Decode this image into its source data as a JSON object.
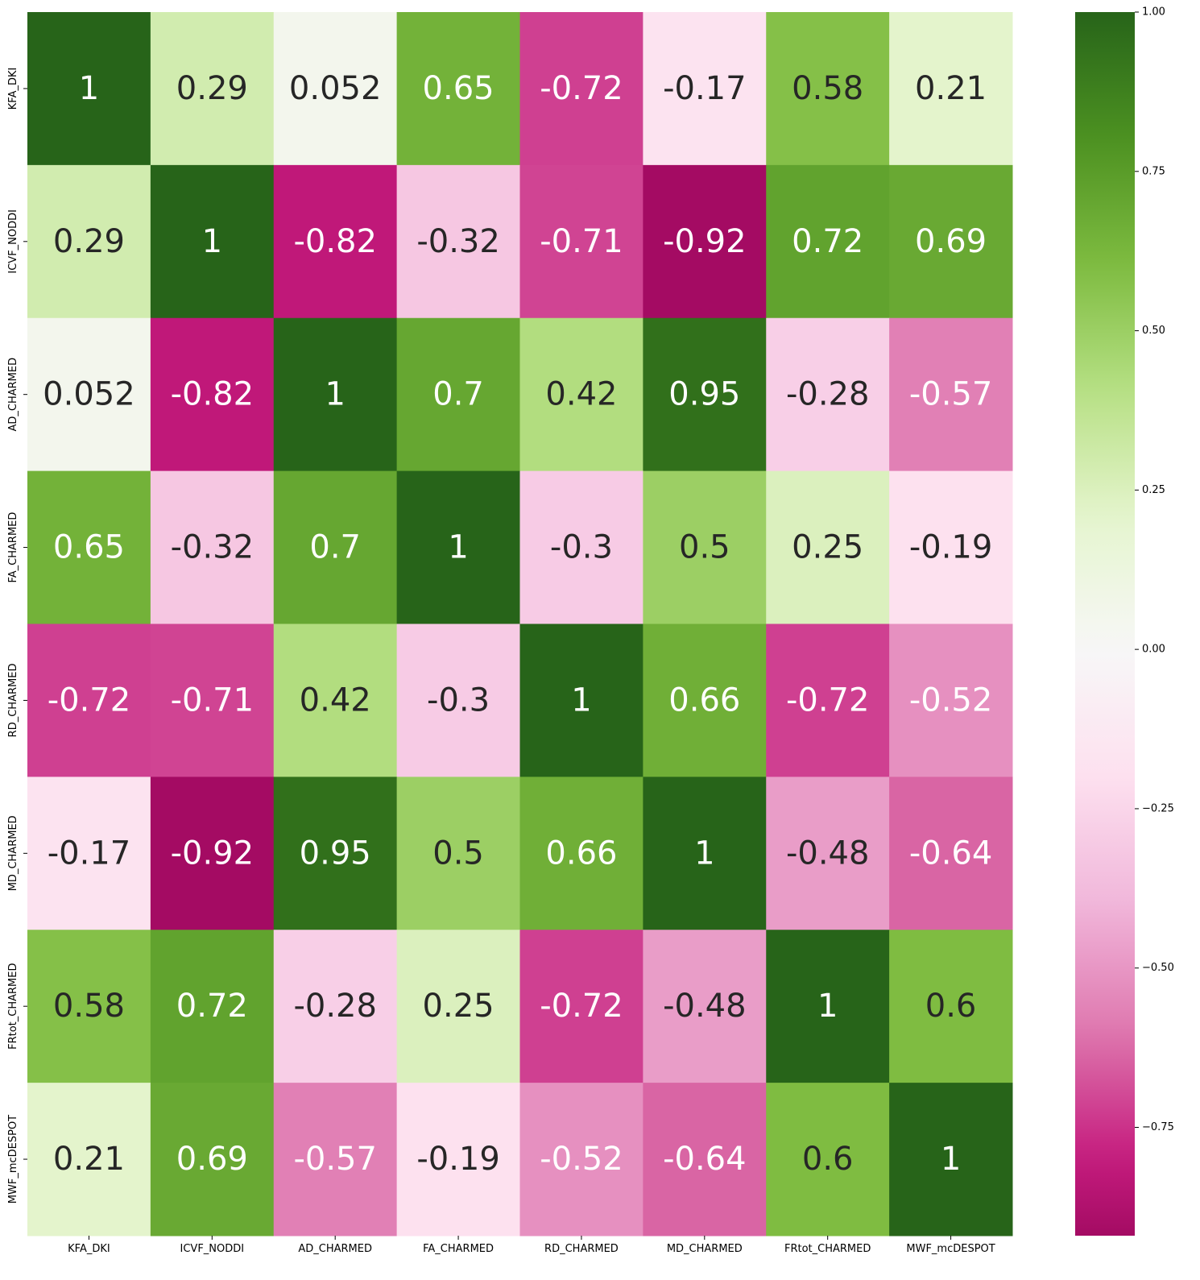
{
  "chart_data": {
    "type": "heatmap",
    "title": "",
    "xlabel": "",
    "ylabel": "",
    "row_labels": [
      "KFA_DKI",
      "ICVF_NODDI",
      "AD_CHARMED",
      "FA_CHARMED",
      "RD_CHARMED",
      "MD_CHARMED",
      "FRtot_CHARMED",
      "MWF_mcDESPOT"
    ],
    "col_labels": [
      "KFA_DKI",
      "ICVF_NODDI",
      "AD_CHARMED",
      "FA_CHARMED",
      "RD_CHARMED",
      "MD_CHARMED",
      "FRtot_CHARMED",
      "MWF_mcDESPOT"
    ],
    "values": [
      [
        1,
        0.29,
        0.052,
        0.65,
        -0.72,
        -0.17,
        0.58,
        0.21
      ],
      [
        0.29,
        1,
        -0.82,
        -0.32,
        -0.71,
        -0.92,
        0.72,
        0.69
      ],
      [
        0.052,
        -0.82,
        1,
        0.7,
        0.42,
        0.95,
        -0.28,
        -0.57
      ],
      [
        0.65,
        -0.32,
        0.7,
        1,
        -0.3,
        0.5,
        0.25,
        -0.19
      ],
      [
        -0.72,
        -0.71,
        0.42,
        -0.3,
        1,
        0.66,
        -0.72,
        -0.52
      ],
      [
        -0.17,
        -0.92,
        0.95,
        0.5,
        0.66,
        1,
        -0.48,
        -0.64
      ],
      [
        0.58,
        0.72,
        -0.28,
        0.25,
        -0.72,
        -0.48,
        1,
        0.6
      ],
      [
        0.21,
        0.69,
        -0.57,
        -0.19,
        -0.52,
        -0.64,
        0.6,
        1
      ]
    ],
    "annotations": [
      [
        "1",
        "0.29",
        "0.052",
        "0.65",
        "-0.72",
        "-0.17",
        "0.58",
        "0.21"
      ],
      [
        "0.29",
        "1",
        "-0.82",
        "-0.32",
        "-0.71",
        "-0.92",
        "0.72",
        "0.69"
      ],
      [
        "0.052",
        "-0.82",
        "1",
        "0.7",
        "0.42",
        "0.95",
        "-0.28",
        "-0.57"
      ],
      [
        "0.65",
        "-0.32",
        "0.7",
        "1",
        "-0.3",
        "0.5",
        "0.25",
        "-0.19"
      ],
      [
        "-0.72",
        "-0.71",
        "0.42",
        "-0.3",
        "1",
        "0.66",
        "-0.72",
        "-0.52"
      ],
      [
        "-0.17",
        "-0.92",
        "0.95",
        "0.5",
        "0.66",
        "1",
        "-0.48",
        "-0.64"
      ],
      [
        "0.58",
        "0.72",
        "-0.28",
        "0.25",
        "-0.72",
        "-0.48",
        "1",
        "0.6"
      ],
      [
        "0.21",
        "0.69",
        "-0.57",
        "-0.19",
        "-0.52",
        "-0.64",
        "0.6",
        "1"
      ]
    ],
    "colormap": "PiYG",
    "colormap_stops": [
      "#8e0152",
      "#c51b7d",
      "#de77ae",
      "#f1b6da",
      "#fde0ef",
      "#f7f7f7",
      "#e6f5d0",
      "#b8e186",
      "#7fbc41",
      "#4d9221",
      "#276419"
    ],
    "vmin": -0.92,
    "vmax": 1.0,
    "colorbar_ticks": [
      1.0,
      0.75,
      0.5,
      0.25,
      0.0,
      -0.25,
      -0.5,
      -0.75
    ],
    "colorbar_tick_labels": [
      "1.00",
      "0.75",
      "0.50",
      "0.25",
      "0.00",
      "−0.25",
      "−0.50",
      "−0.75"
    ],
    "grid": false,
    "legend": "colorbar-right"
  }
}
